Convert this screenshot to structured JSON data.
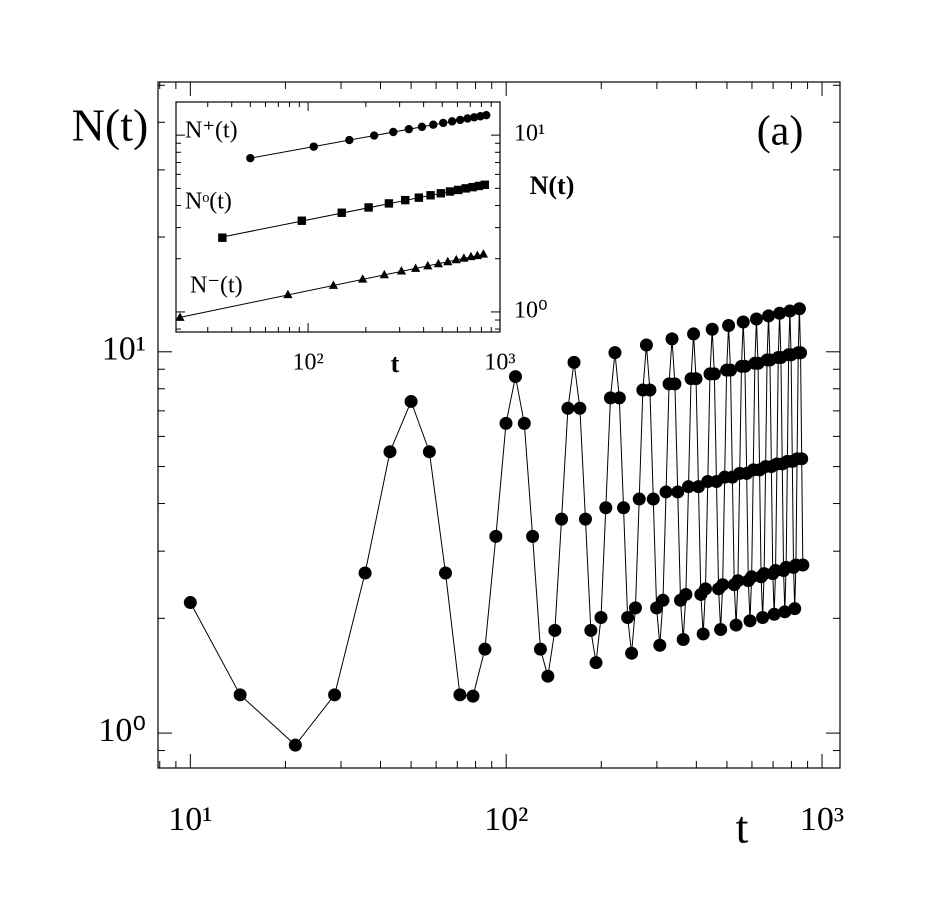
{
  "chart_data": [
    {
      "type": "line",
      "log_x": true,
      "log_y": true,
      "y_label": "N(t)",
      "x_label": "t",
      "annotation": "(a)",
      "color": "#000000",
      "xlim": [
        7.9,
        1140
      ],
      "ylim": [
        0.81,
        51
      ],
      "xticks": [
        {
          "value": 10,
          "label": "10¹"
        },
        {
          "value": 100,
          "label": "10²"
        },
        {
          "value": 1000,
          "label": "10³"
        }
      ],
      "yticks": [
        {
          "value": 1,
          "label": "10⁰"
        },
        {
          "value": 10,
          "label": "10¹"
        }
      ],
      "xminor": [
        8,
        9,
        20,
        30,
        40,
        50,
        60,
        70,
        80,
        90,
        200,
        300,
        400,
        500,
        600,
        700,
        800,
        900
      ],
      "yminor": [
        0.9,
        2,
        3,
        4,
        5,
        6,
        7,
        8,
        9,
        20,
        30,
        40,
        50
      ],
      "x": [
        10,
        14.375,
        21.5,
        28.625,
        35.75,
        42.875,
        50,
        57.125,
        64.25,
        71.375,
        78.5,
        85.625,
        92.75,
        99.875,
        107,
        114.125,
        121.25,
        128.375,
        135.5,
        142.625,
        149.75,
        156.875,
        164,
        171.125,
        178.25,
        185.375,
        192.5,
        199.625,
        206.75,
        213.875,
        221,
        228.125,
        235.25,
        242.375,
        249.5,
        256.625,
        263.75,
        270.875,
        278,
        285.125,
        292.25,
        299.375,
        306.5,
        313.625,
        320.75,
        327.875,
        335,
        342.125,
        349.25,
        356.375,
        363.5,
        370.625,
        377.75,
        384.875,
        392,
        399.125,
        406.25,
        413.375,
        420.5,
        427.625,
        434.75,
        441.875,
        449,
        456.125,
        463.25,
        470.375,
        477.5,
        484.625,
        491.75,
        498.875,
        506,
        513.125,
        520.25,
        527.375,
        534.5,
        541.625,
        548.75,
        555.875,
        563,
        570.125,
        577.25,
        584.375,
        591.5,
        598.625,
        605.75,
        612.875,
        620,
        627.125,
        634.25,
        641.375,
        648.5,
        655.625,
        662.75,
        669.875,
        677,
        684.125,
        691.25,
        698.375,
        705.5,
        712.625,
        719.75,
        726.875,
        734,
        741.125,
        748.25,
        755.375,
        762.5,
        769.625,
        776.75,
        783.875,
        791,
        798.125,
        805.25,
        812.375,
        819.5,
        826.625,
        833.75,
        840.875,
        848,
        855.125,
        862.25,
        869.375
      ],
      "values": [
        2.2,
        1.26,
        0.93,
        1.26,
        2.63,
        5.47,
        7.41,
        5.47,
        2.63,
        1.26,
        1.25,
        1.66,
        3.28,
        6.49,
        8.61,
        6.49,
        3.28,
        1.66,
        1.41,
        1.86,
        3.64,
        7.11,
        9.38,
        7.11,
        3.64,
        1.86,
        1.53,
        2.01,
        3.9,
        7.57,
        9.95,
        7.57,
        3.9,
        2.01,
        1.62,
        2.13,
        4.11,
        7.94,
        10.42,
        7.94,
        4.11,
        2.13,
        1.7,
        2.23,
        4.29,
        8.24,
        10.81,
        8.24,
        4.29,
        2.23,
        1.76,
        2.31,
        4.43,
        8.5,
        11.14,
        8.5,
        4.43,
        2.31,
        1.82,
        2.39,
        4.57,
        8.75,
        11.46,
        8.75,
        4.57,
        2.39,
        1.87,
        2.45,
        4.69,
        8.95,
        11.72,
        8.95,
        4.69,
        2.45,
        1.92,
        2.51,
        4.8,
        9.16,
        11.97,
        9.16,
        4.8,
        2.51,
        1.97,
        2.57,
        4.9,
        9.33,
        12.19,
        9.33,
        4.9,
        2.57,
        2.01,
        2.62,
        5,
        9.52,
        12.42,
        9.52,
        5,
        2.62,
        2.05,
        2.67,
        5.08,
        9.66,
        12.62,
        9.66,
        5.08,
        2.67,
        2.08,
        2.72,
        5.16,
        9.82,
        12.79,
        9.82,
        5.16,
        2.72,
        2.12,
        2.76,
        5.24,
        9.94,
        12.97,
        9.94,
        5.24,
        2.76
      ]
    },
    {
      "type": "scatter",
      "log_x": true,
      "log_y": true,
      "fit_lines": true,
      "y_label": "N(t)",
      "x_label": "t",
      "xlim": [
        20.5,
        1000
      ],
      "ylim": [
        0.77,
        15.4
      ],
      "xticks": [
        {
          "value": 100,
          "label": "10²"
        },
        {
          "value": 1000,
          "label": "10³"
        }
      ],
      "yticks": [
        {
          "value": 1,
          "label": "10⁰"
        },
        {
          "value": 10,
          "label": "10¹"
        }
      ],
      "xminor": [
        30,
        40,
        50,
        60,
        70,
        80,
        90,
        200,
        300,
        400,
        500,
        600,
        700,
        800,
        900
      ],
      "yminor": [
        0.8,
        0.9,
        2,
        3,
        4,
        5,
        6,
        7,
        8,
        9
      ],
      "series": [
        {
          "name": "N⁺(t)",
          "marker": "circle",
          "color": "#000000",
          "x": [
            50,
            107,
            164,
            221,
            278,
            335,
            392,
            449,
            506,
            563,
            620,
            677,
            734,
            791,
            848
          ],
          "values": [
            7.41,
            8.61,
            9.38,
            9.95,
            10.42,
            10.81,
            11.14,
            11.46,
            11.72,
            11.97,
            12.19,
            12.42,
            12.62,
            12.79,
            12.97
          ]
        },
        {
          "name": "Nᵒ(t)",
          "marker": "square",
          "color": "#000000",
          "x": [
            35.75,
            92.75,
            149.75,
            206.75,
            263.75,
            320.75,
            377.75,
            434.75,
            491.75,
            548.75,
            605.75,
            662.75,
            719.75,
            776.75,
            833.75
          ],
          "values": [
            2.63,
            3.28,
            3.64,
            3.9,
            4.11,
            4.29,
            4.43,
            4.57,
            4.69,
            4.8,
            4.9,
            5,
            5.08,
            5.16,
            5.24
          ]
        },
        {
          "name": "N⁻(t)",
          "marker": "triangle",
          "color": "#000000",
          "x": [
            21.5,
            78.5,
            135.5,
            192.5,
            249.5,
            306.5,
            363.5,
            420.5,
            477.5,
            534.5,
            591.5,
            648.5,
            705.5,
            762.5,
            819.5
          ],
          "values": [
            0.93,
            1.25,
            1.41,
            1.53,
            1.62,
            1.7,
            1.76,
            1.82,
            1.87,
            1.92,
            1.97,
            2.01,
            2.05,
            2.08,
            2.12
          ]
        }
      ]
    }
  ]
}
